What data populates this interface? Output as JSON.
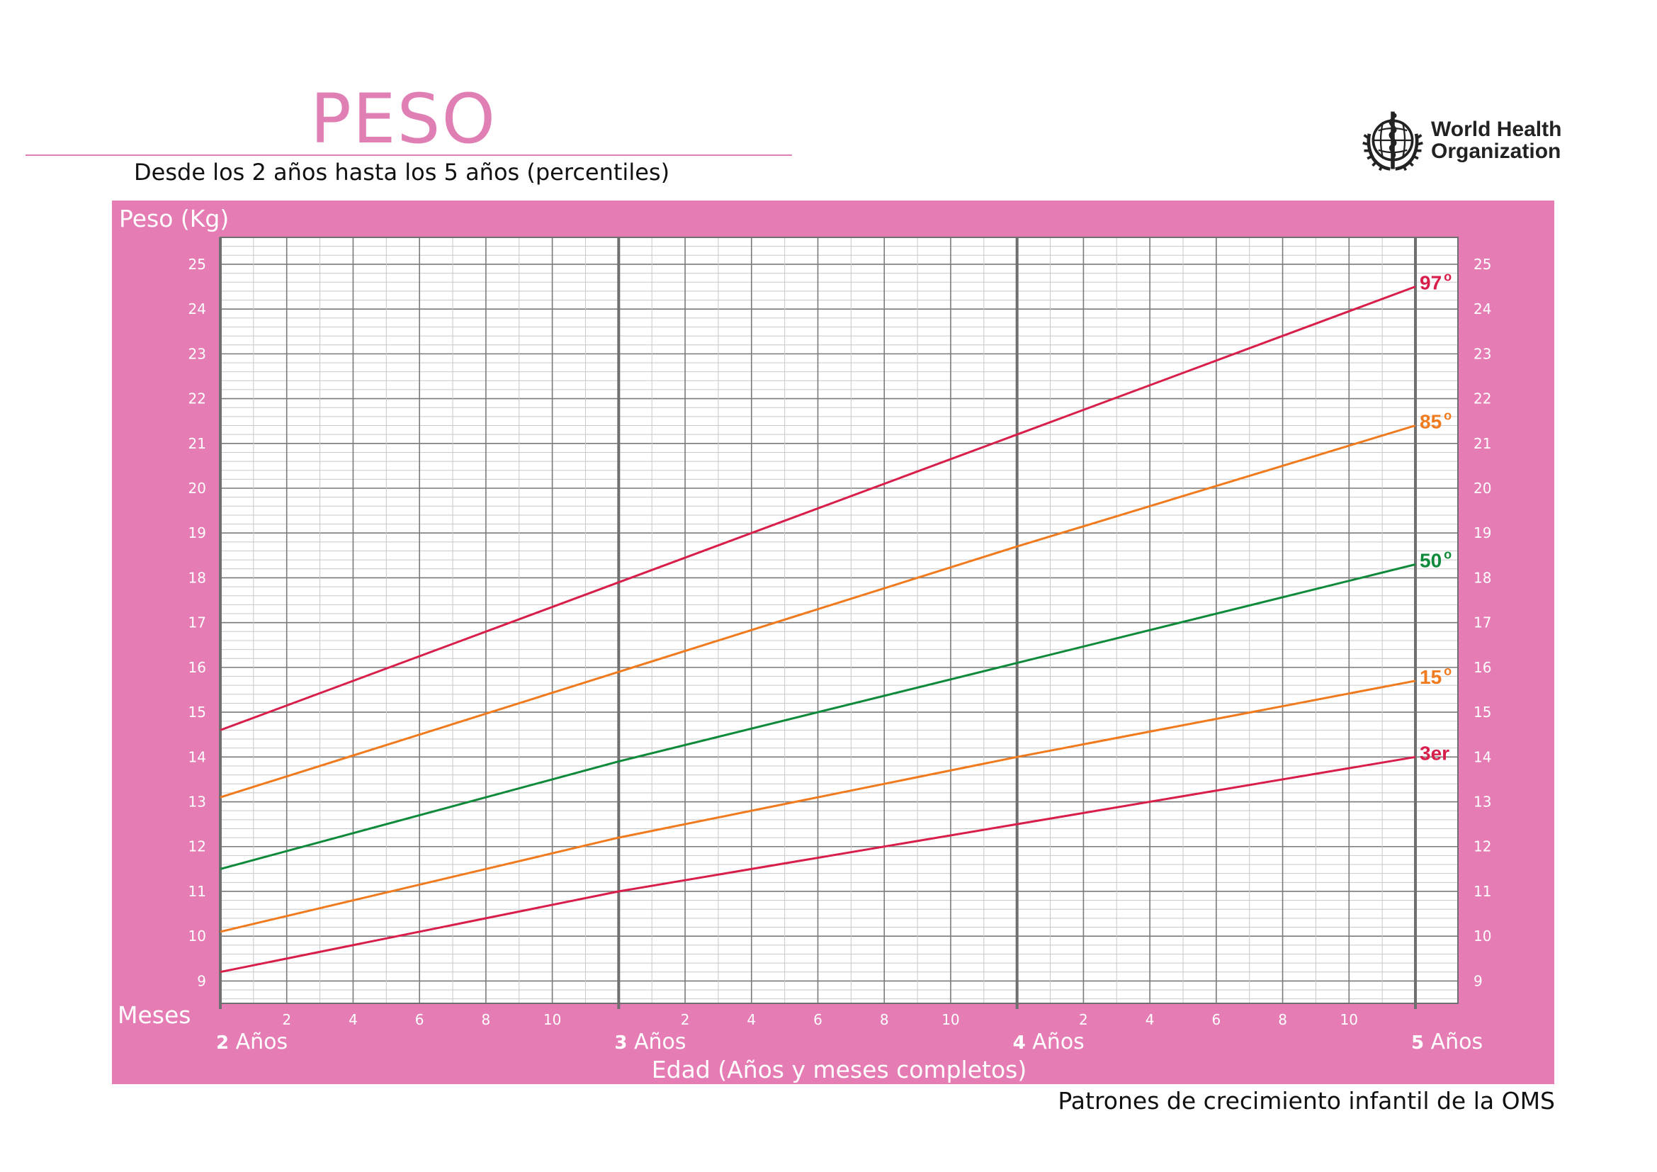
{
  "header": {
    "title": "PESO",
    "subtitle": "Desde los 2 años hasta los 5 años (percentiles)"
  },
  "logo": {
    "icon": "who-emblem-icon",
    "line1": "World Health",
    "line2": "Organization"
  },
  "footer": {
    "text": "Patrones de crecimiento infantil de la OMS"
  },
  "colors": {
    "frame": "#e57db4",
    "grid_minor": "#c8c8c8",
    "grid_major": "#7a7a7a",
    "p97": "#d81e4a",
    "p85": "#f07a1e",
    "p50": "#0f8a3a",
    "p15": "#f07a1e",
    "p3": "#d81e4a"
  },
  "chart_data": {
    "type": "line",
    "ylabel": "Peso (Kg)",
    "xlabel": "Edad (Años y meses completos)",
    "months_label": "Meses",
    "x_unit": "months",
    "xlim": [
      24,
      60
    ],
    "ylim": [
      8.5,
      25.6
    ],
    "y_ticks": [
      9,
      10,
      11,
      12,
      13,
      14,
      15,
      16,
      17,
      18,
      19,
      20,
      21,
      22,
      23,
      24,
      25
    ],
    "month_ticks": [
      2,
      4,
      6,
      8,
      10
    ],
    "year_labels": [
      {
        "num": "2",
        "text": "Años",
        "month": 24
      },
      {
        "num": "3",
        "text": "Años",
        "month": 36
      },
      {
        "num": "4",
        "text": "Años",
        "month": 48
      },
      {
        "num": "5",
        "text": "Años",
        "month": 60
      }
    ],
    "grid": true,
    "series": [
      {
        "name": "97",
        "suffix": "o",
        "color_key": "p97",
        "x": [
          24,
          36,
          48,
          60
        ],
        "y": [
          14.6,
          17.9,
          21.2,
          24.5
        ]
      },
      {
        "name": "85",
        "suffix": "o",
        "color_key": "p85",
        "x": [
          24,
          36,
          48,
          60
        ],
        "y": [
          13.1,
          15.9,
          18.7,
          21.4
        ]
      },
      {
        "name": "50",
        "suffix": "o",
        "color_key": "p50",
        "x": [
          24,
          36,
          48,
          60
        ],
        "y": [
          11.5,
          13.9,
          16.1,
          18.3
        ]
      },
      {
        "name": "15",
        "suffix": "o",
        "color_key": "p15",
        "x": [
          24,
          36,
          48,
          60
        ],
        "y": [
          10.1,
          12.2,
          14.0,
          15.7
        ]
      },
      {
        "name": "3er",
        "suffix": "",
        "color_key": "p3",
        "x": [
          24,
          36,
          48,
          60
        ],
        "y": [
          9.2,
          11.0,
          12.5,
          14.0
        ]
      }
    ]
  }
}
